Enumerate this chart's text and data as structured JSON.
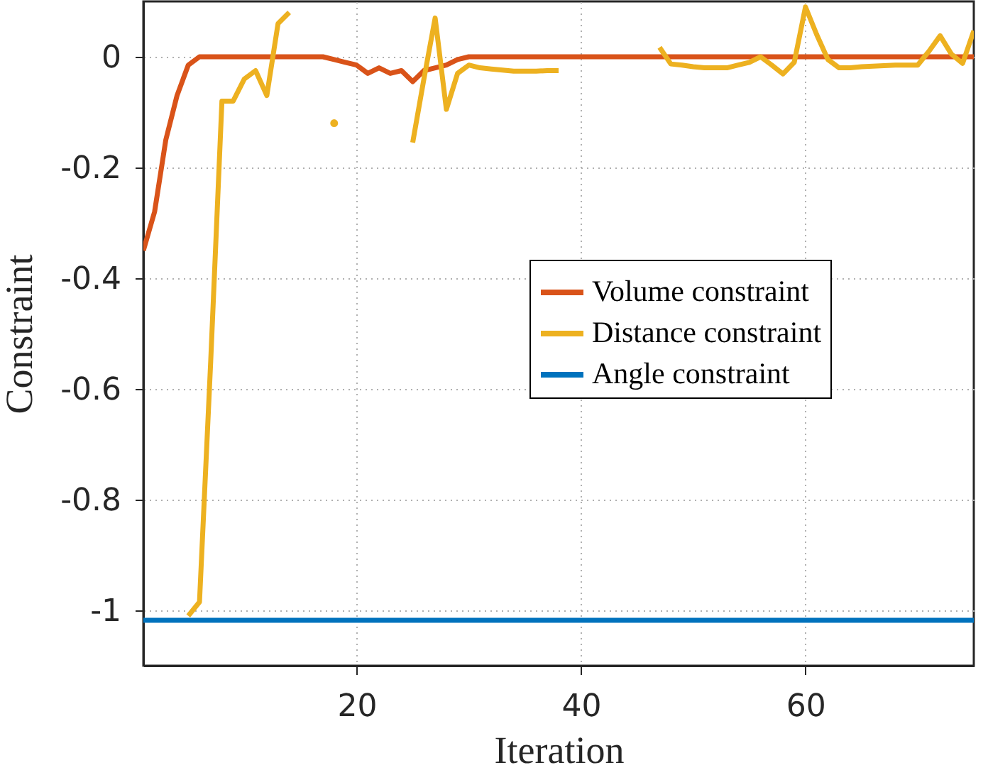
{
  "chart_data": {
    "type": "line",
    "xlabel": "Iteration",
    "ylabel": "Constraint",
    "xlim": [
      1,
      75
    ],
    "xticks": [
      20,
      40,
      60
    ],
    "ylim": [
      -1.1,
      0.1
    ],
    "yticks": [
      -1,
      -0.8,
      -0.6,
      -0.4,
      -0.2,
      0
    ],
    "grid": true,
    "legend": "right",
    "line_style": "solid",
    "marker": "none",
    "series": [
      {
        "name": "Volume constraint",
        "color": "#d95319",
        "x": [
          1,
          2,
          3,
          4,
          5,
          6,
          7,
          8,
          9,
          10,
          11,
          12,
          13,
          14,
          15,
          16,
          17,
          18,
          19,
          20,
          21,
          22,
          23,
          24,
          25,
          26,
          27,
          28,
          29,
          30,
          35,
          40,
          45,
          50,
          55,
          60,
          65,
          70,
          75
        ],
        "values": [
          -0.35,
          -0.28,
          -0.15,
          -0.07,
          -0.015,
          0,
          0,
          0,
          0,
          0,
          0,
          0,
          0,
          0,
          0,
          0,
          0,
          -0.005,
          -0.01,
          -0.015,
          -0.03,
          -0.02,
          -0.03,
          -0.025,
          -0.045,
          -0.025,
          -0.02,
          -0.015,
          -0.005,
          0,
          0,
          0,
          0,
          0,
          0,
          0,
          0,
          0,
          0
        ]
      },
      {
        "name": "Distance constraint",
        "color": "#edb120",
        "x": [
          5,
          6,
          7,
          8,
          9,
          10,
          11,
          12,
          13,
          14,
          15,
          16,
          17,
          18,
          19,
          20,
          21,
          22,
          23,
          24,
          25,
          26,
          27,
          28,
          29,
          30,
          31,
          32,
          33,
          34,
          35,
          36,
          37,
          38,
          39,
          40,
          41,
          42,
          43,
          44,
          45,
          46,
          47,
          48,
          49,
          50,
          51,
          52,
          53,
          54,
          55,
          56,
          57,
          58,
          59,
          60,
          61,
          62,
          63,
          64,
          65,
          66,
          67,
          68,
          69,
          70,
          71,
          72,
          73,
          74,
          75
        ],
        "values": [
          -1.01,
          -0.985,
          -0.55,
          -0.08,
          -0.08,
          -0.04,
          -0.025,
          -0.07,
          0.06,
          0.08,
          null,
          null,
          null,
          -0.12,
          null,
          null,
          null,
          null,
          null,
          null,
          -0.155,
          -0.04,
          0.07,
          -0.095,
          -0.03,
          -0.015,
          -0.02,
          -0.022,
          -0.024,
          -0.026,
          -0.026,
          -0.026,
          -0.025,
          -0.025,
          null,
          null,
          null,
          null,
          null,
          null,
          null,
          null,
          0.017,
          -0.013,
          -0.015,
          -0.018,
          -0.02,
          -0.02,
          -0.02,
          -0.015,
          -0.01,
          0,
          -0.015,
          -0.031,
          -0.01,
          0.09,
          0.04,
          -0.005,
          -0.02,
          -0.02,
          -0.018,
          -0.017,
          -0.016,
          -0.015,
          -0.015,
          -0.015,
          0.01,
          0.038,
          0.005,
          -0.012,
          0.047
        ]
      },
      {
        "name": "Angle constraint",
        "color": "#0072bd",
        "x": [
          1,
          75
        ],
        "values": [
          -1.018,
          -1.018
        ]
      }
    ]
  }
}
